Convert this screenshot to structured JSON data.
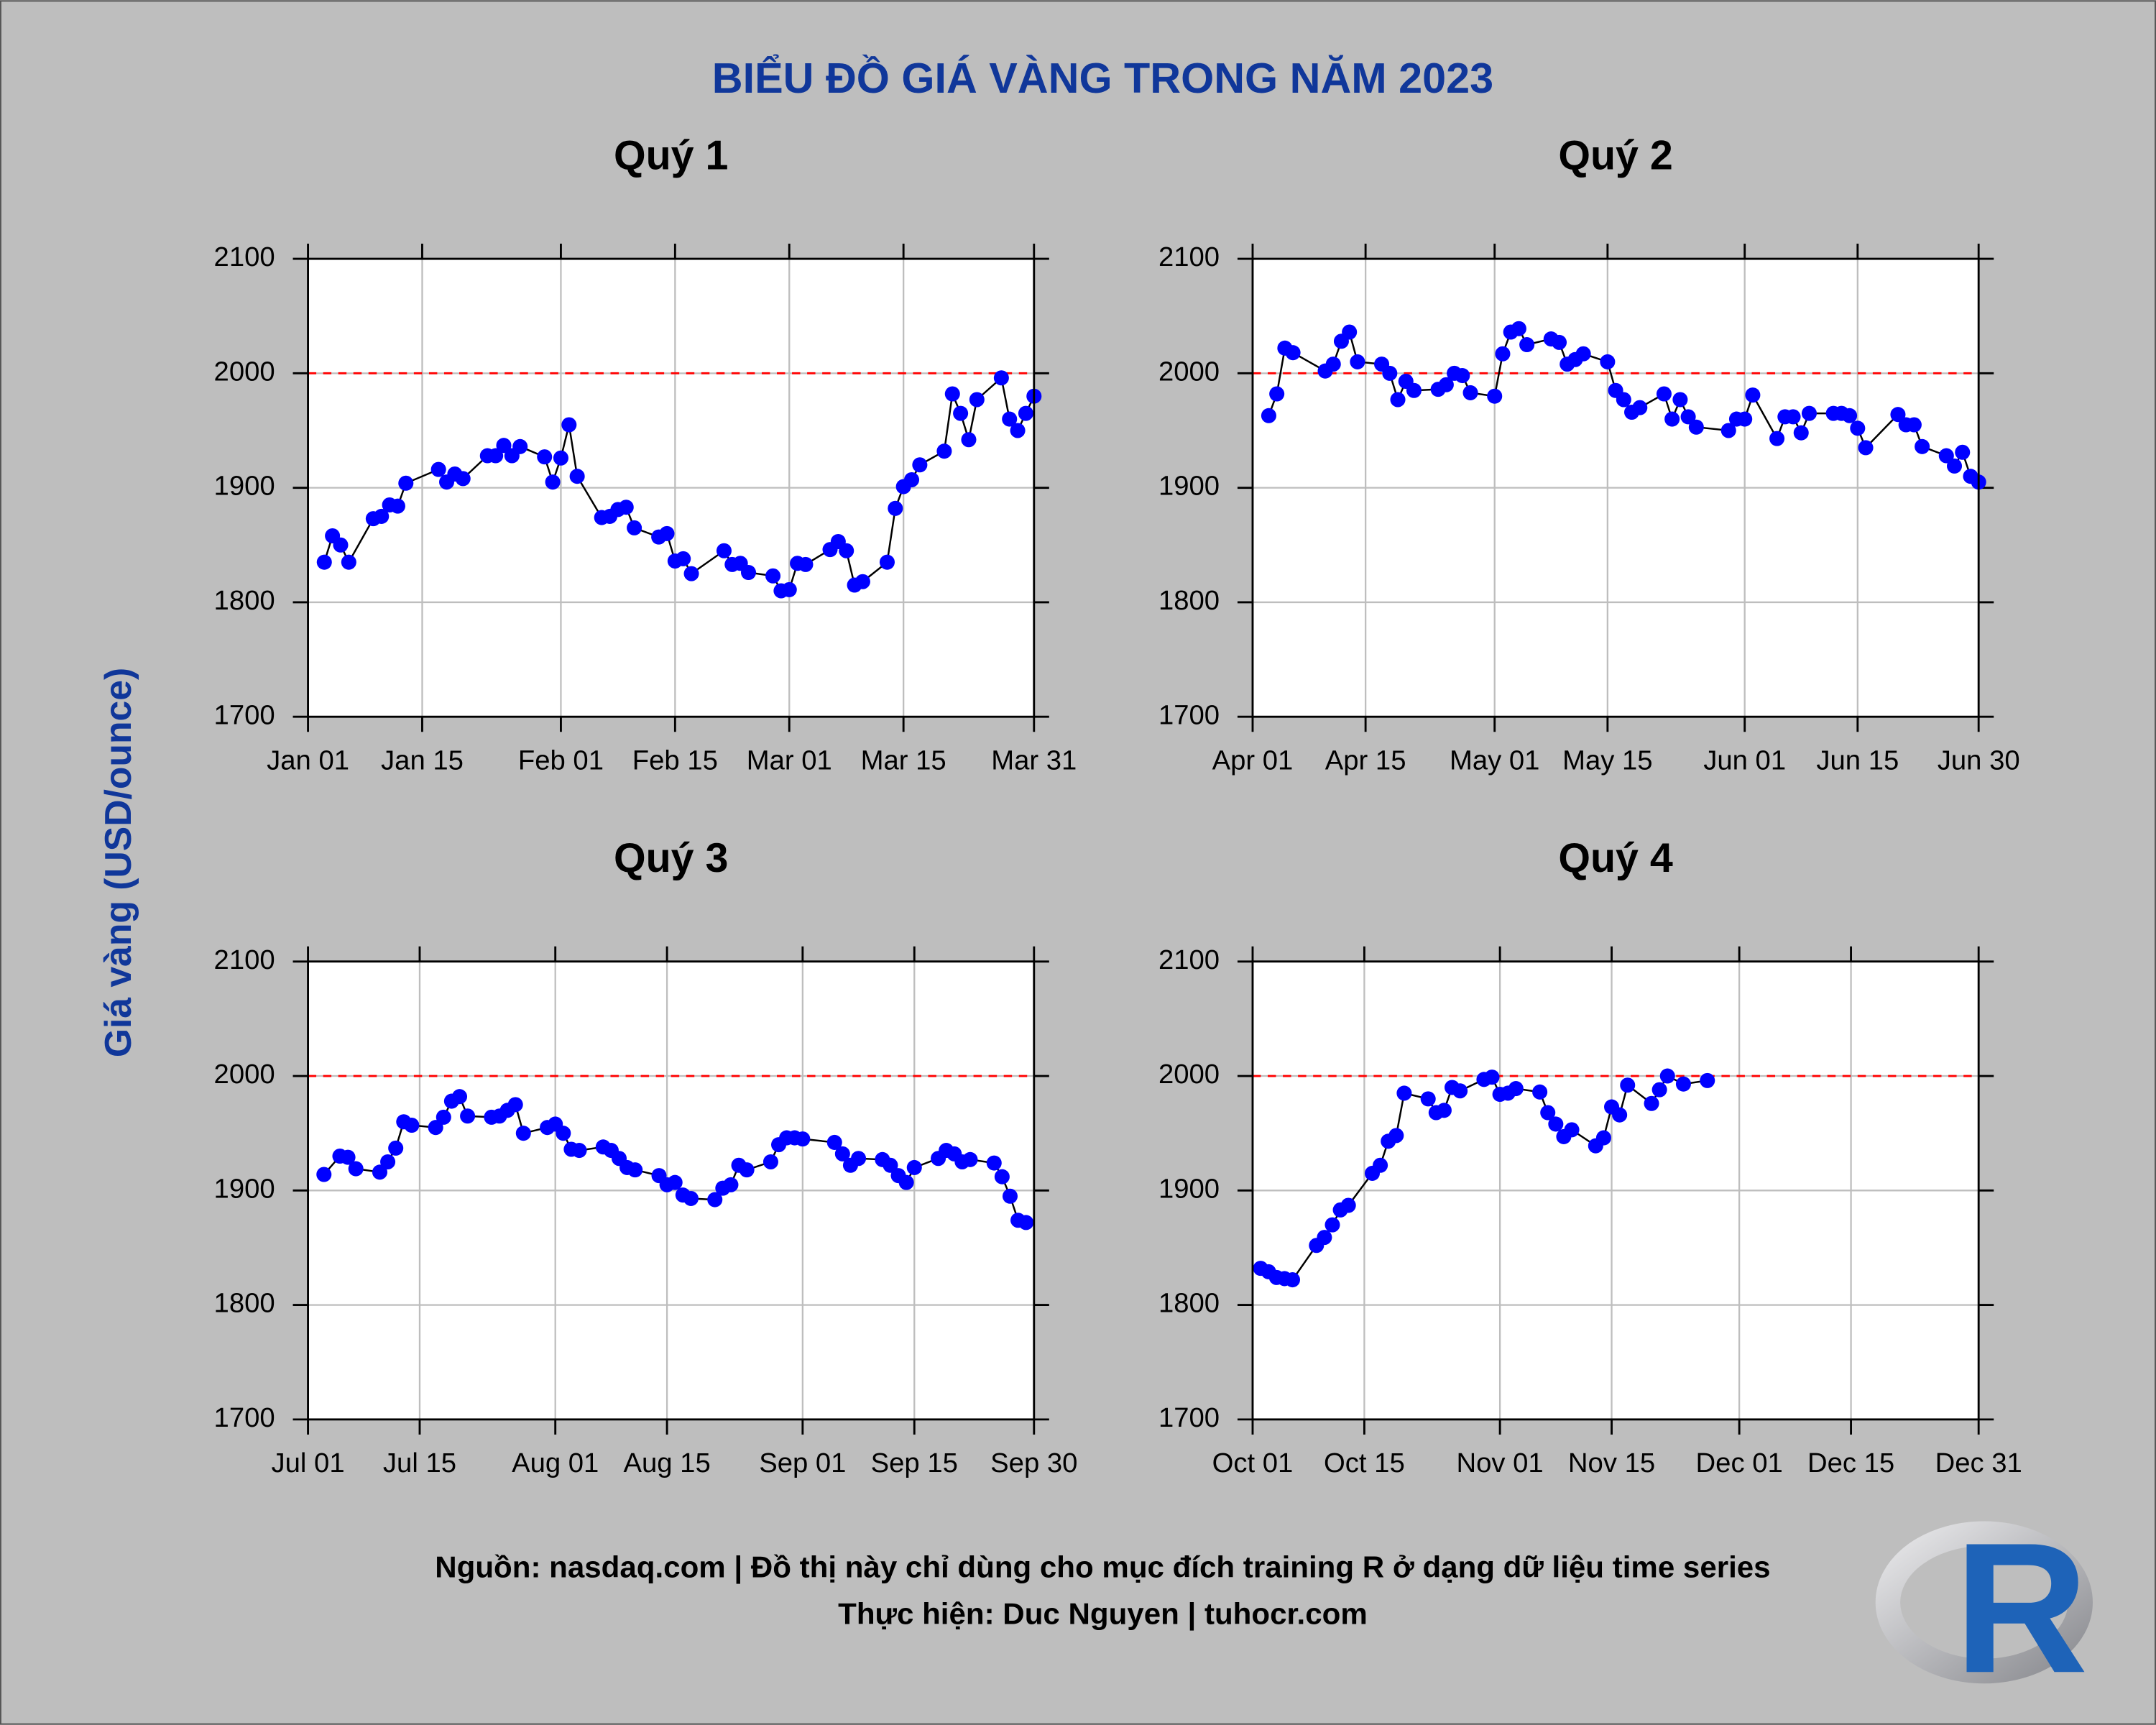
{
  "title": "BIỂU ĐỒ GIÁ VÀNG TRONG NĂM 2023",
  "y_label": "Giá vàng (USD/ounce)",
  "caption": [
    "Nguồn: nasdaq.com | Đồ thị này chỉ dùng cho mục đích training R ở dạng dữ liệu time series",
    "Thực hiện: Duc Nguyen | tuhocr.com"
  ],
  "logo": "R",
  "chart_data": [
    {
      "type": "line",
      "title": "Quý 1",
      "line_color": "#000000",
      "marker_color": "#0000ff",
      "grid": true,
      "hline": {
        "value": 2000,
        "color": "#ff0000"
      },
      "xlim": [
        "2023-01-01",
        "2023-03-31"
      ],
      "xticks": [
        {
          "value": "2023-01-01",
          "label": "Jan 01"
        },
        {
          "value": "2023-01-15",
          "label": "Jan 15"
        },
        {
          "value": "2023-02-01",
          "label": "Feb 01"
        },
        {
          "value": "2023-02-15",
          "label": "Feb 15"
        },
        {
          "value": "2023-03-01",
          "label": "Mar 01"
        },
        {
          "value": "2023-03-15",
          "label": "Mar 15"
        },
        {
          "value": "2023-03-31",
          "label": "Mar 31"
        }
      ],
      "ylim": [
        1700,
        2100
      ],
      "yticks": [
        1700,
        1800,
        1900,
        2000,
        2100
      ],
      "x": [
        "2023-01-03",
        "2023-01-04",
        "2023-01-05",
        "2023-01-06",
        "2023-01-09",
        "2023-01-10",
        "2023-01-11",
        "2023-01-12",
        "2023-01-13",
        "2023-01-17",
        "2023-01-18",
        "2023-01-19",
        "2023-01-20",
        "2023-01-23",
        "2023-01-24",
        "2023-01-25",
        "2023-01-26",
        "2023-01-27",
        "2023-01-30",
        "2023-01-31",
        "2023-02-01",
        "2023-02-02",
        "2023-02-03",
        "2023-02-06",
        "2023-02-07",
        "2023-02-08",
        "2023-02-09",
        "2023-02-10",
        "2023-02-13",
        "2023-02-14",
        "2023-02-15",
        "2023-02-16",
        "2023-02-17",
        "2023-02-21",
        "2023-02-22",
        "2023-02-23",
        "2023-02-24",
        "2023-02-27",
        "2023-02-28",
        "2023-03-01",
        "2023-03-02",
        "2023-03-03",
        "2023-03-06",
        "2023-03-07",
        "2023-03-08",
        "2023-03-09",
        "2023-03-10",
        "2023-03-13",
        "2023-03-14",
        "2023-03-15",
        "2023-03-16",
        "2023-03-17",
        "2023-03-20",
        "2023-03-21",
        "2023-03-22",
        "2023-03-23",
        "2023-03-24",
        "2023-03-27",
        "2023-03-28",
        "2023-03-29",
        "2023-03-30",
        "2023-03-31"
      ],
      "values": [
        1835,
        1858,
        1850,
        1835,
        1873,
        1875,
        1885,
        1884,
        1904,
        1916,
        1905,
        1912,
        1908,
        1928,
        1928,
        1937,
        1928,
        1936,
        1927,
        1905,
        1926,
        1955,
        1910,
        1874,
        1875,
        1881,
        1883,
        1865,
        1857,
        1860,
        1836,
        1838,
        1825,
        1845,
        1833,
        1834,
        1826,
        1823,
        1810,
        1811,
        1834,
        1833,
        1846,
        1853,
        1845,
        1815,
        1818,
        1835,
        1882,
        1901,
        1907,
        1920,
        1932,
        1982,
        1965,
        1942,
        1977,
        1996,
        1960,
        1950,
        1965,
        1980
      ]
    },
    {
      "type": "line",
      "title": "Quý 2",
      "line_color": "#000000",
      "marker_color": "#0000ff",
      "grid": true,
      "hline": {
        "value": 2000,
        "color": "#ff0000"
      },
      "xlim": [
        "2023-04-01",
        "2023-06-30"
      ],
      "xticks": [
        {
          "value": "2023-04-01",
          "label": "Apr 01"
        },
        {
          "value": "2023-04-15",
          "label": "Apr 15"
        },
        {
          "value": "2023-05-01",
          "label": "May 01"
        },
        {
          "value": "2023-05-15",
          "label": "May 15"
        },
        {
          "value": "2023-06-01",
          "label": "Jun 01"
        },
        {
          "value": "2023-06-15",
          "label": "Jun 15"
        },
        {
          "value": "2023-06-30",
          "label": "Jun 30"
        }
      ],
      "ylim": [
        1700,
        2100
      ],
      "yticks": [
        1700,
        1800,
        1900,
        2000,
        2100
      ],
      "x": [
        "2023-04-03",
        "2023-04-04",
        "2023-04-05",
        "2023-04-06",
        "2023-04-10",
        "2023-04-11",
        "2023-04-12",
        "2023-04-13",
        "2023-04-14",
        "2023-04-17",
        "2023-04-18",
        "2023-04-19",
        "2023-04-20",
        "2023-04-21",
        "2023-04-24",
        "2023-04-25",
        "2023-04-26",
        "2023-04-27",
        "2023-04-28",
        "2023-05-01",
        "2023-05-02",
        "2023-05-03",
        "2023-05-04",
        "2023-05-05",
        "2023-05-08",
        "2023-05-09",
        "2023-05-10",
        "2023-05-11",
        "2023-05-12",
        "2023-05-15",
        "2023-05-16",
        "2023-05-17",
        "2023-05-18",
        "2023-05-19",
        "2023-05-22",
        "2023-05-23",
        "2023-05-24",
        "2023-05-25",
        "2023-05-26",
        "2023-05-30",
        "2023-05-31",
        "2023-06-01",
        "2023-06-02",
        "2023-06-05",
        "2023-06-06",
        "2023-06-07",
        "2023-06-08",
        "2023-06-09",
        "2023-06-12",
        "2023-06-13",
        "2023-06-14",
        "2023-06-15",
        "2023-06-16",
        "2023-06-20",
        "2023-06-21",
        "2023-06-22",
        "2023-06-23",
        "2023-06-26",
        "2023-06-27",
        "2023-06-28",
        "2023-06-29",
        "2023-06-30"
      ],
      "values": [
        1963,
        1982,
        2022,
        2018,
        2002,
        2008,
        2028,
        2036,
        2010,
        2008,
        2000,
        1977,
        1993,
        1985,
        1986,
        1990,
        2000,
        1998,
        1983,
        1980,
        2017,
        2036,
        2039,
        2025,
        2030,
        2027,
        2008,
        2012,
        2017,
        2010,
        1985,
        1977,
        1966,
        1970,
        1982,
        1960,
        1977,
        1962,
        1953,
        1950,
        1960,
        1960,
        1981,
        1943,
        1962,
        1962,
        1948,
        1965,
        1965,
        1965,
        1963,
        1952,
        1935,
        1964,
        1955,
        1955,
        1936,
        1928,
        1919,
        1931,
        1910,
        1905
      ]
    },
    {
      "type": "line",
      "title": "Quý 3",
      "line_color": "#000000",
      "marker_color": "#0000ff",
      "grid": true,
      "hline": {
        "value": 2000,
        "color": "#ff0000"
      },
      "xlim": [
        "2023-07-01",
        "2023-09-30"
      ],
      "xticks": [
        {
          "value": "2023-07-01",
          "label": "Jul 01"
        },
        {
          "value": "2023-07-15",
          "label": "Jul 15"
        },
        {
          "value": "2023-08-01",
          "label": "Aug 01"
        },
        {
          "value": "2023-08-15",
          "label": "Aug 15"
        },
        {
          "value": "2023-09-01",
          "label": "Sep 01"
        },
        {
          "value": "2023-09-15",
          "label": "Sep 15"
        },
        {
          "value": "2023-09-30",
          "label": "Sep 30"
        }
      ],
      "ylim": [
        1700,
        2100
      ],
      "yticks": [
        1700,
        1800,
        1900,
        2000,
        2100
      ],
      "x": [
        "2023-07-03",
        "2023-07-05",
        "2023-07-06",
        "2023-07-07",
        "2023-07-10",
        "2023-07-11",
        "2023-07-12",
        "2023-07-13",
        "2023-07-14",
        "2023-07-17",
        "2023-07-18",
        "2023-07-19",
        "2023-07-20",
        "2023-07-21",
        "2023-07-24",
        "2023-07-25",
        "2023-07-26",
        "2023-07-27",
        "2023-07-28",
        "2023-07-31",
        "2023-08-01",
        "2023-08-02",
        "2023-08-03",
        "2023-08-04",
        "2023-08-07",
        "2023-08-08",
        "2023-08-09",
        "2023-08-10",
        "2023-08-11",
        "2023-08-14",
        "2023-08-15",
        "2023-08-16",
        "2023-08-17",
        "2023-08-18",
        "2023-08-21",
        "2023-08-22",
        "2023-08-23",
        "2023-08-24",
        "2023-08-25",
        "2023-08-28",
        "2023-08-29",
        "2023-08-30",
        "2023-08-31",
        "2023-09-01",
        "2023-09-05",
        "2023-09-06",
        "2023-09-07",
        "2023-09-08",
        "2023-09-11",
        "2023-09-12",
        "2023-09-13",
        "2023-09-14",
        "2023-09-15",
        "2023-09-18",
        "2023-09-19",
        "2023-09-20",
        "2023-09-21",
        "2023-09-22",
        "2023-09-25",
        "2023-09-26",
        "2023-09-27",
        "2023-09-28",
        "2023-09-29"
      ],
      "values": [
        1914,
        1930,
        1929,
        1919,
        1916,
        1925,
        1937,
        1960,
        1957,
        1955,
        1964,
        1978,
        1982,
        1965,
        1964,
        1965,
        1970,
        1975,
        1950,
        1955,
        1958,
        1950,
        1936,
        1935,
        1938,
        1935,
        1928,
        1920,
        1918,
        1913,
        1905,
        1907,
        1896,
        1893,
        1892,
        1902,
        1905,
        1922,
        1918,
        1925,
        1940,
        1946,
        1946,
        1945,
        1942,
        1932,
        1922,
        1928,
        1927,
        1922,
        1913,
        1907,
        1920,
        1928,
        1935,
        1932,
        1925,
        1927,
        1924,
        1912,
        1895,
        1874,
        1872
      ]
    },
    {
      "type": "line",
      "title": "Quý 4",
      "line_color": "#000000",
      "marker_color": "#0000ff",
      "grid": true,
      "hline": {
        "value": 2000,
        "color": "#ff0000"
      },
      "xlim": [
        "2023-10-01",
        "2023-12-31"
      ],
      "xticks": [
        {
          "value": "2023-10-01",
          "label": "Oct 01"
        },
        {
          "value": "2023-10-15",
          "label": "Oct 15"
        },
        {
          "value": "2023-11-01",
          "label": "Nov 01"
        },
        {
          "value": "2023-11-15",
          "label": "Nov 15"
        },
        {
          "value": "2023-12-01",
          "label": "Dec 01"
        },
        {
          "value": "2023-12-15",
          "label": "Dec 15"
        },
        {
          "value": "2023-12-31",
          "label": "Dec 31"
        }
      ],
      "ylim": [
        1700,
        2100
      ],
      "yticks": [
        1700,
        1800,
        1900,
        2000,
        2100
      ],
      "x": [
        "2023-10-02",
        "2023-10-03",
        "2023-10-04",
        "2023-10-05",
        "2023-10-06",
        "2023-10-09",
        "2023-10-10",
        "2023-10-11",
        "2023-10-12",
        "2023-10-13",
        "2023-10-16",
        "2023-10-17",
        "2023-10-18",
        "2023-10-19",
        "2023-10-20",
        "2023-10-23",
        "2023-10-24",
        "2023-10-25",
        "2023-10-26",
        "2023-10-27",
        "2023-10-30",
        "2023-10-31",
        "2023-11-01",
        "2023-11-02",
        "2023-11-03",
        "2023-11-06",
        "2023-11-07",
        "2023-11-08",
        "2023-11-09",
        "2023-11-10",
        "2023-11-13",
        "2023-11-14",
        "2023-11-15",
        "2023-11-16",
        "2023-11-17",
        "2023-11-20",
        "2023-11-21",
        "2023-11-22",
        "2023-11-24",
        "2023-11-27"
      ],
      "values": [
        1832,
        1829,
        1824,
        1823,
        1822,
        1852,
        1859,
        1870,
        1883,
        1887,
        1915,
        1922,
        1943,
        1948,
        1985,
        1980,
        1968,
        1970,
        1990,
        1987,
        1997,
        1999,
        1984,
        1985,
        1989,
        1986,
        1968,
        1958,
        1947,
        1953,
        1939,
        1946,
        1973,
        1966,
        1992,
        1976,
        1988,
        2000,
        1993,
        1996
      ]
    }
  ]
}
